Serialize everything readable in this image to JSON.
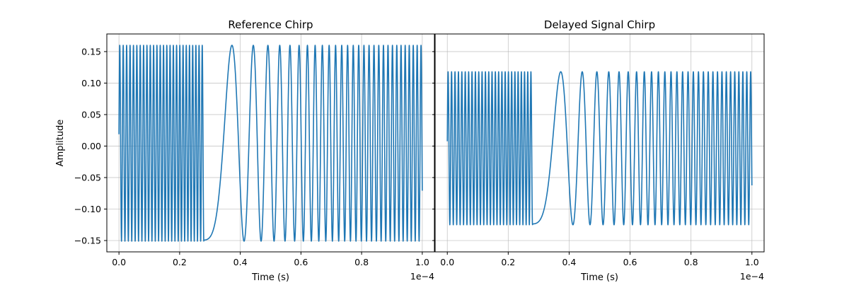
{
  "chart_data": [
    {
      "type": "line",
      "title": "Reference Chirp",
      "xlabel": "Time (s)",
      "ylabel": "Amplitude",
      "x_offset_text": "1e−4",
      "xlim": [
        -0.04,
        1.04
      ],
      "ylim": [
        -0.168,
        0.178
      ],
      "xticks": [
        0.0,
        0.2,
        0.4,
        0.6,
        0.8,
        1.0
      ],
      "xtick_labels": [
        "0.0",
        "0.2",
        "0.4",
        "0.6",
        "0.8",
        "1.0"
      ],
      "yticks": [
        -0.15,
        -0.1,
        -0.05,
        0.0,
        0.05,
        0.1,
        0.15
      ],
      "ytick_labels": [
        "−0.15",
        "−0.10",
        "−0.05",
        "0.00",
        "0.05",
        "0.10",
        "0.15"
      ],
      "grid": true,
      "color": "#1f77b4",
      "series": [
        {
          "description": "chirp with wrap-around at x=0.28 (1e-4 s): dense oscillation 0–0.28, slow swing ~0.28–0.46, frequency rising toward 1.0",
          "amplitude_max": 0.16,
          "amplitude_min": -0.151,
          "wrap_point_x": 0.28,
          "x_start": 0.0,
          "x_end": 1.0
        }
      ]
    },
    {
      "type": "line",
      "title": "Delayed Signal Chirp",
      "xlabel": "Time (s)",
      "ylabel": "",
      "x_offset_text": "1e−4",
      "xlim": [
        -0.04,
        1.04
      ],
      "ylim": [
        -0.168,
        0.178
      ],
      "xticks": [
        0.0,
        0.2,
        0.4,
        0.6,
        0.8,
        1.0
      ],
      "xtick_labels": [
        "0.0",
        "0.2",
        "0.4",
        "0.6",
        "0.8",
        "1.0"
      ],
      "yticks": [
        -0.15,
        -0.1,
        -0.05,
        0.0,
        0.05,
        0.1,
        0.15
      ],
      "grid": true,
      "shared_y": true,
      "color": "#1f77b4",
      "series": [
        {
          "description": "delayed chirp with wrap-around at x=0.28, slightly smaller amplitude",
          "amplitude_max": 0.118,
          "amplitude_min": -0.125,
          "wrap_point_x": 0.28,
          "x_start": 0.0,
          "x_end": 1.0
        }
      ]
    }
  ]
}
